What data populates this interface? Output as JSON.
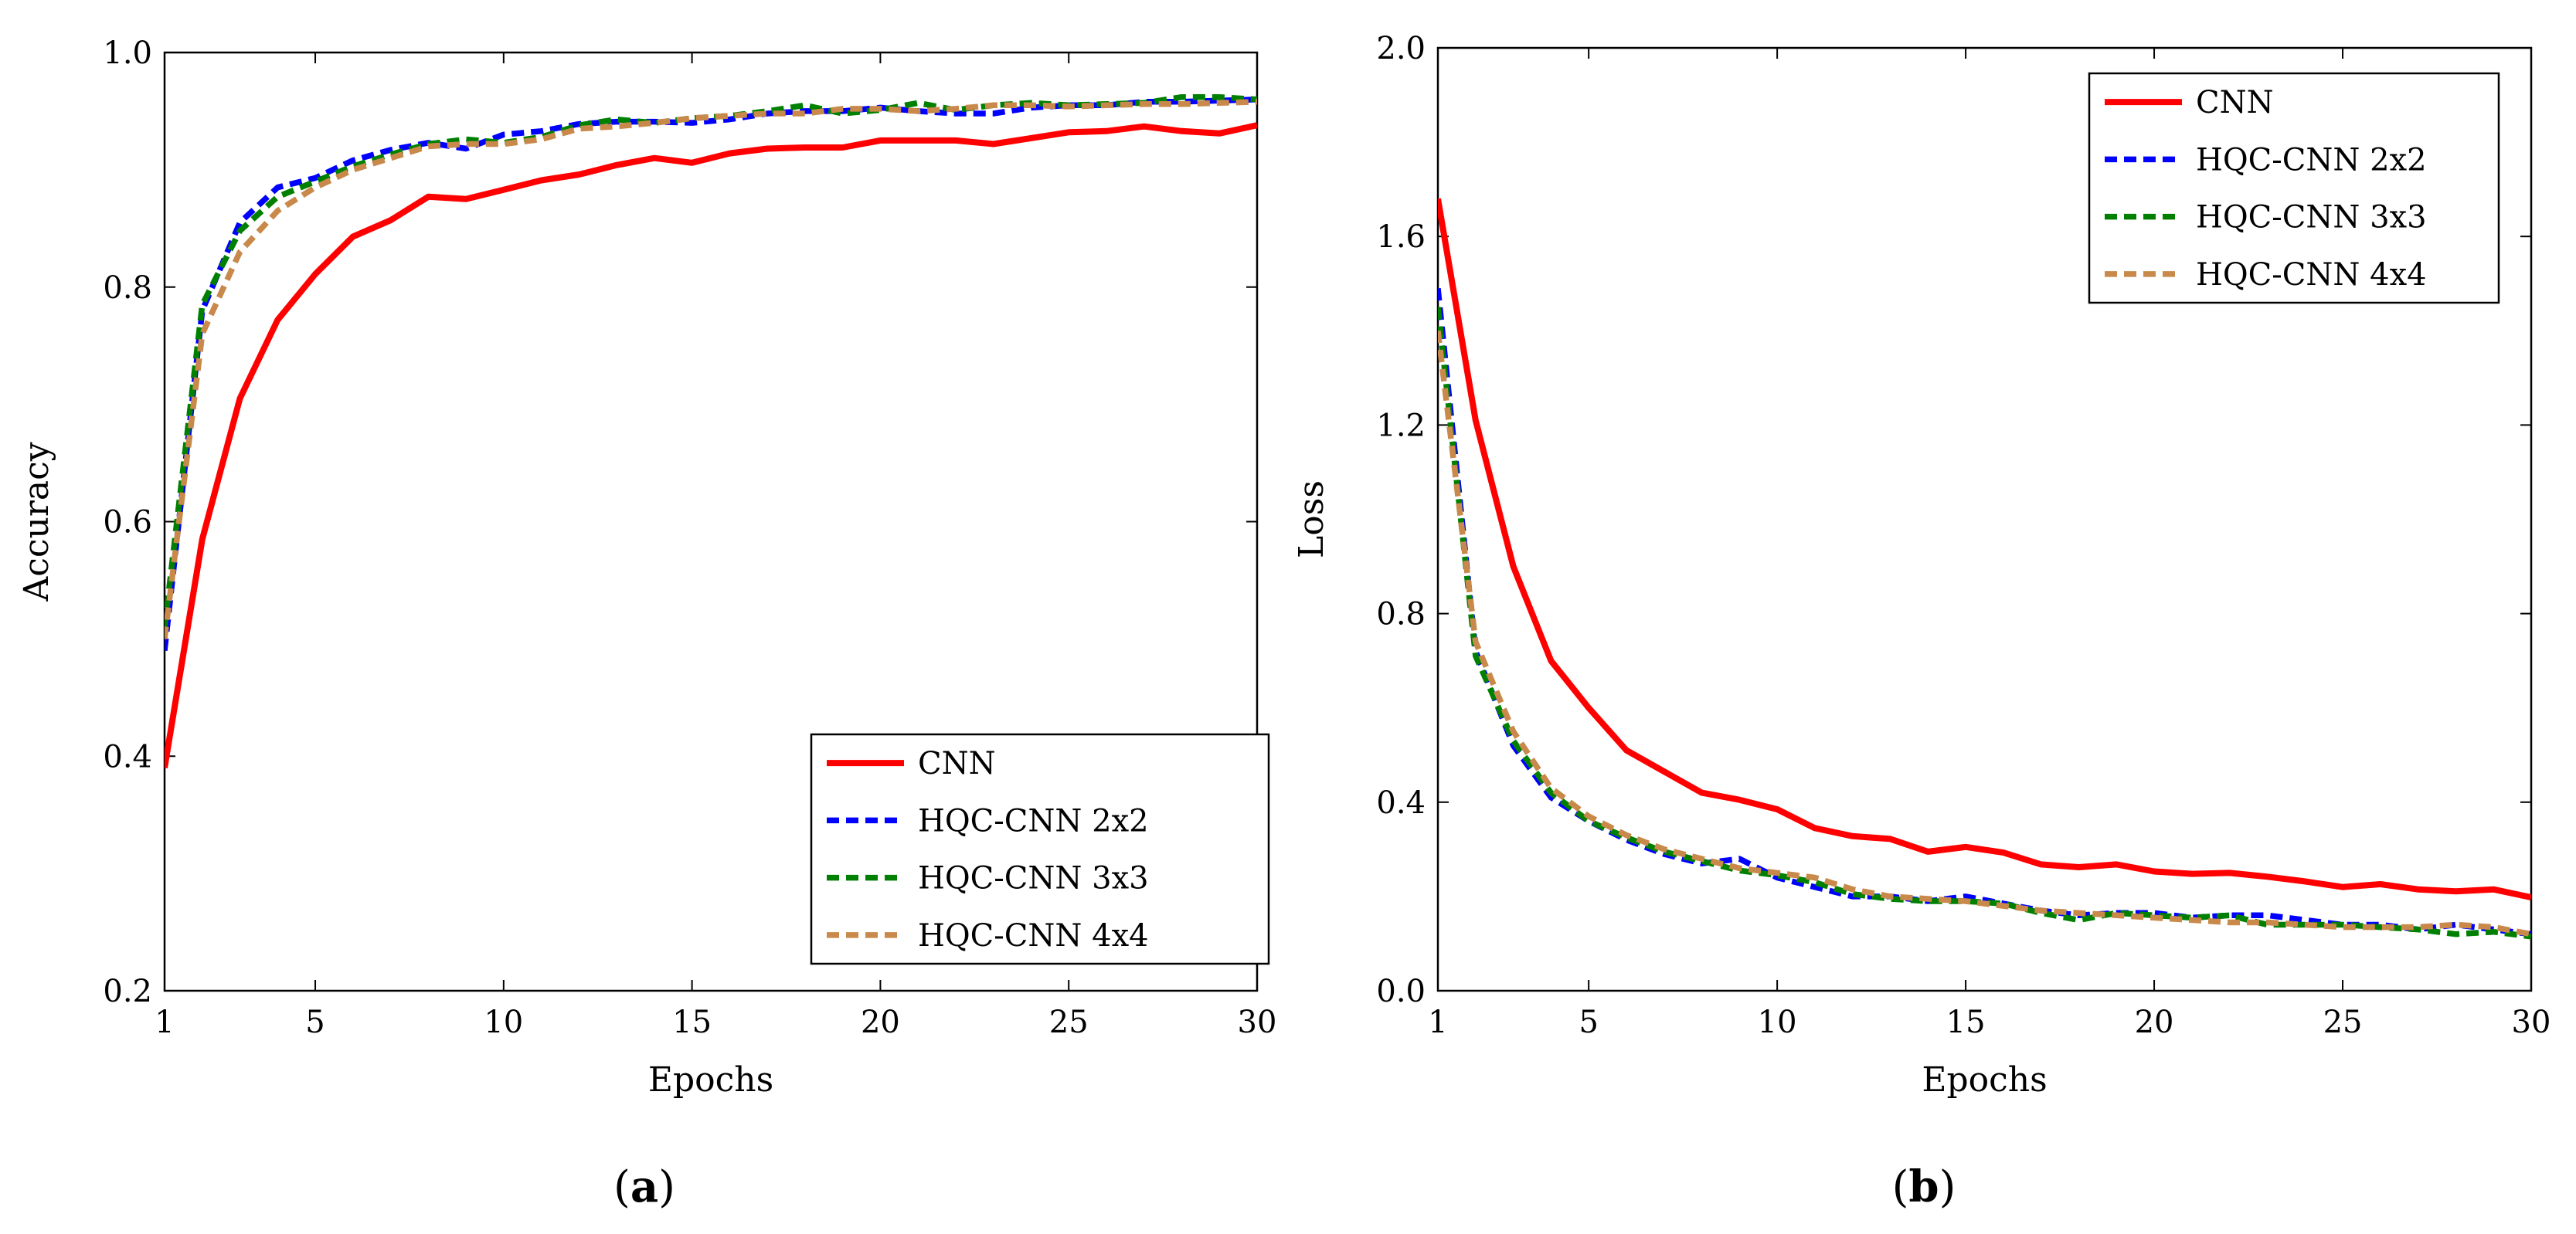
{
  "colors": {
    "CNN": "#ff0000",
    "HQC-CNN 2x2": "#0000ff",
    "HQC-CNN 3x3": "#008000",
    "HQC-CNN 4x4": "#c8894b"
  },
  "chart_data": [
    {
      "type": "line",
      "panel": "a",
      "panel_label": "a",
      "xlabel": "Epochs",
      "ylabel": "Accuracy",
      "xlim": [
        1,
        30
      ],
      "ylim": [
        0.2,
        1.0
      ],
      "xticks": [
        1,
        5,
        10,
        15,
        20,
        25,
        30
      ],
      "yticks": [
        0.2,
        0.4,
        0.6,
        0.8,
        1.0
      ],
      "legend_position": "bottom-right",
      "x": [
        1,
        2,
        3,
        4,
        5,
        6,
        7,
        8,
        9,
        10,
        11,
        12,
        13,
        14,
        15,
        16,
        17,
        18,
        19,
        20,
        21,
        22,
        23,
        24,
        25,
        26,
        27,
        28,
        29,
        30
      ],
      "series": [
        {
          "name": "CNN",
          "style": "solid",
          "values": [
            0.39,
            0.585,
            0.705,
            0.772,
            0.811,
            0.843,
            0.857,
            0.877,
            0.875,
            0.883,
            0.891,
            0.896,
            0.904,
            0.91,
            0.906,
            0.914,
            0.918,
            0.919,
            0.919,
            0.925,
            0.925,
            0.925,
            0.922,
            0.927,
            0.932,
            0.933,
            0.937,
            0.933,
            0.931,
            0.938
          ]
        },
        {
          "name": "HQC-CNN 2x2",
          "style": "dashed",
          "values": [
            0.49,
            0.78,
            0.855,
            0.885,
            0.893,
            0.908,
            0.917,
            0.923,
            0.918,
            0.93,
            0.933,
            0.939,
            0.941,
            0.941,
            0.94,
            0.943,
            0.948,
            0.95,
            0.95,
            0.953,
            0.95,
            0.948,
            0.948,
            0.953,
            0.955,
            0.955,
            0.958,
            0.958,
            0.959,
            0.96
          ]
        },
        {
          "name": "HQC-CNN 3x3",
          "style": "dashed",
          "values": [
            0.51,
            0.785,
            0.848,
            0.877,
            0.89,
            0.903,
            0.913,
            0.922,
            0.926,
            0.923,
            0.928,
            0.938,
            0.943,
            0.94,
            0.944,
            0.946,
            0.95,
            0.955,
            0.948,
            0.951,
            0.957,
            0.951,
            0.955,
            0.957,
            0.955,
            0.956,
            0.957,
            0.962,
            0.962,
            0.96
          ]
        },
        {
          "name": "HQC-CNN 4x4",
          "style": "dashed",
          "values": [
            0.5,
            0.76,
            0.83,
            0.865,
            0.885,
            0.9,
            0.91,
            0.92,
            0.922,
            0.922,
            0.926,
            0.935,
            0.937,
            0.94,
            0.944,
            0.946,
            0.948,
            0.948,
            0.952,
            0.952,
            0.95,
            0.952,
            0.955,
            0.955,
            0.954,
            0.955,
            0.956,
            0.956,
            0.957,
            0.958
          ]
        }
      ]
    },
    {
      "type": "line",
      "panel": "b",
      "panel_label": "b",
      "xlabel": "Epochs",
      "ylabel": "Loss",
      "xlim": [
        1,
        30
      ],
      "ylim": [
        0.0,
        2.0
      ],
      "xticks": [
        1,
        5,
        10,
        15,
        20,
        25,
        30
      ],
      "yticks": [
        0.0,
        0.4,
        0.8,
        1.2,
        1.6,
        2.0
      ],
      "legend_position": "top-right",
      "x": [
        1,
        2,
        3,
        4,
        5,
        6,
        7,
        8,
        9,
        10,
        11,
        12,
        13,
        14,
        15,
        16,
        17,
        18,
        19,
        20,
        21,
        22,
        23,
        24,
        25,
        26,
        27,
        28,
        29,
        30
      ],
      "series": [
        {
          "name": "CNN",
          "style": "solid",
          "values": [
            1.68,
            1.21,
            0.9,
            0.7,
            0.6,
            0.51,
            0.465,
            0.42,
            0.405,
            0.385,
            0.345,
            0.328,
            0.322,
            0.295,
            0.305,
            0.293,
            0.268,
            0.262,
            0.268,
            0.253,
            0.248,
            0.25,
            0.242,
            0.232,
            0.22,
            0.226,
            0.215,
            0.211,
            0.215,
            0.198
          ]
        },
        {
          "name": "HQC-CNN 2x2",
          "style": "dashed",
          "values": [
            1.49,
            0.72,
            0.52,
            0.41,
            0.36,
            0.32,
            0.29,
            0.27,
            0.28,
            0.24,
            0.22,
            0.2,
            0.2,
            0.19,
            0.2,
            0.185,
            0.17,
            0.16,
            0.165,
            0.165,
            0.155,
            0.16,
            0.16,
            0.15,
            0.14,
            0.14,
            0.13,
            0.14,
            0.13,
            0.12
          ]
        },
        {
          "name": "HQC-CNN 3x3",
          "style": "dashed",
          "values": [
            1.45,
            0.71,
            0.53,
            0.42,
            0.36,
            0.325,
            0.295,
            0.275,
            0.255,
            0.245,
            0.23,
            0.205,
            0.195,
            0.19,
            0.19,
            0.185,
            0.165,
            0.15,
            0.165,
            0.16,
            0.155,
            0.16,
            0.14,
            0.14,
            0.14,
            0.135,
            0.13,
            0.12,
            0.125,
            0.115
          ]
        },
        {
          "name": "HQC-CNN 4x4",
          "style": "dashed",
          "values": [
            1.4,
            0.74,
            0.55,
            0.43,
            0.37,
            0.33,
            0.3,
            0.28,
            0.26,
            0.25,
            0.24,
            0.215,
            0.2,
            0.195,
            0.19,
            0.18,
            0.17,
            0.165,
            0.16,
            0.155,
            0.15,
            0.145,
            0.145,
            0.14,
            0.135,
            0.135,
            0.135,
            0.14,
            0.135,
            0.12
          ]
        }
      ]
    }
  ]
}
